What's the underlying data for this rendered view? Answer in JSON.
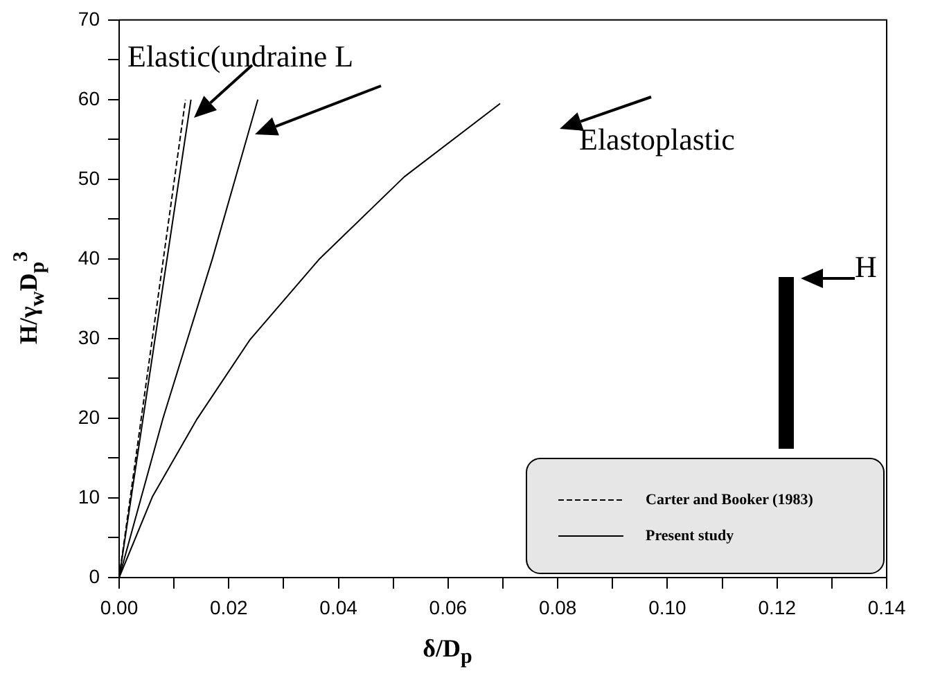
{
  "chart_data": {
    "type": "line",
    "xlabel": "δ/D$_{p}$",
    "ylabel": "H/γ$_{w}$D$_{p}$$^{3}$",
    "xlim": [
      0,
      0.14
    ],
    "ylim": [
      0,
      70
    ],
    "xticks": [
      {
        "value": 0,
        "label": "0.00"
      },
      {
        "value": 0.01,
        "label": null
      },
      {
        "value": 0.02,
        "label": "0.02"
      },
      {
        "value": 0.03,
        "label": null
      },
      {
        "value": 0.04,
        "label": "0.04"
      },
      {
        "value": 0.05,
        "label": null
      },
      {
        "value": 0.06,
        "label": "0.06"
      },
      {
        "value": 0.07,
        "label": null
      },
      {
        "value": 0.08,
        "label": "0.08"
      },
      {
        "value": 0.09,
        "label": null
      },
      {
        "value": 0.1,
        "label": "0.10"
      },
      {
        "value": 0.11,
        "label": null
      },
      {
        "value": 0.12,
        "label": "0.12"
      },
      {
        "value": 0.13,
        "label": null
      },
      {
        "value": 0.14,
        "label": "0.14"
      }
    ],
    "yticks": [
      0,
      {
        "value": 5,
        "label": null
      },
      10,
      {
        "value": 15,
        "label": null
      },
      20,
      {
        "value": 25,
        "label": null
      },
      30,
      {
        "value": 35,
        "label": null
      },
      40,
      {
        "value": 45,
        "label": null
      },
      50,
      {
        "value": 55,
        "label": null
      },
      60,
      {
        "value": 65,
        "label": null
      },
      70
    ],
    "series": [
      {
        "name": "Carter and Booker (1983)",
        "color": "#000000",
        "line_style": "dashed",
        "x": [
          0,
          0.0121
        ],
        "values": [
          0,
          60
        ]
      },
      {
        "name": "Present study",
        "color": "#000000",
        "line_style": "solid",
        "x": [
          0,
          0.0131
        ],
        "values": [
          0,
          60
        ]
      },
      {
        "color": "#000000",
        "line_style": "solid",
        "x": [
          0,
          0.008,
          0.017,
          0.0253
        ],
        "values": [
          0,
          20,
          40,
          60
        ]
      },
      {
        "color": "#000000",
        "line_style": "solid",
        "x": [
          0,
          0.0061,
          0.0142,
          0.0238,
          0.0364,
          0.052,
          0.0695
        ],
        "values": [
          0,
          10.2,
          19.9,
          29.8,
          39.9,
          50.3,
          59.5
        ]
      }
    ],
    "annotations": [
      "Elastic(undraine L",
      "Elastoplastic",
      "H"
    ],
    "legend": "bottom right",
    "grid": false,
    "marker": "none"
  }
}
